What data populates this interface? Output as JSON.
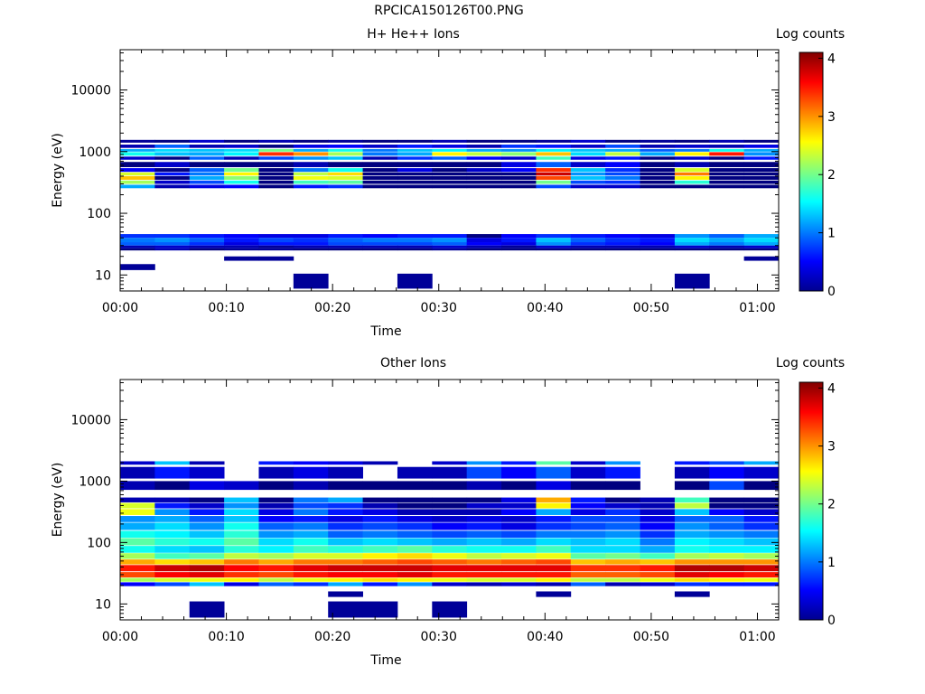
{
  "figure": {
    "title": "RPCICA150126T00.PNG"
  },
  "chart_data": [
    {
      "type": "heatmap",
      "title": "H+ He++ Ions",
      "xlabel": "Time",
      "ylabel": "Energy (eV)",
      "colorbar_label": "Log counts",
      "colorbar_ticks": [
        "0",
        "1",
        "2",
        "3",
        "4"
      ],
      "colorbar_range": [
        0,
        4.1
      ],
      "xlim_minutes": [
        0,
        62
      ],
      "x_ticks": [
        "00:00",
        "00:10",
        "00:20",
        "00:30",
        "00:40",
        "00:50",
        "01:00"
      ],
      "ylim": [
        5.5,
        45000
      ],
      "y_scale": "log",
      "y_ticks": [
        "10",
        "100",
        "1000",
        "10000"
      ],
      "time_bins": 19,
      "energy_bands": [
        {
          "e_lo": 1400,
          "e_hi": 1550,
          "values": [
            0.1,
            0.0,
            0.3,
            0.0,
            0.2,
            0.0,
            0.1,
            0.0,
            0.0,
            0.2,
            0.0,
            0.0,
            0.1,
            0.3,
            0.0,
            0.1,
            0.0,
            0.2,
            0.0
          ]
        },
        {
          "e_lo": 1150,
          "e_hi": 1300,
          "values": [
            0.2,
            0.9,
            0.2,
            0.3,
            0.0,
            0.4,
            0.5,
            0.3,
            0.6,
            0.4,
            0.2,
            0.7,
            0.6,
            0.3,
            0.8,
            0.2,
            0.3,
            0.2,
            0.4
          ]
        },
        {
          "e_lo": 1000,
          "e_hi": 1100,
          "values": [
            1.2,
            1.4,
            1.3,
            1.4,
            2.0,
            1.2,
            1.6,
            1.0,
            1.3,
            1.5,
            1.2,
            1.1,
            1.5,
            1.3,
            1.2,
            0.9,
            1.0,
            1.6,
            1.2
          ]
        },
        {
          "e_lo": 860,
          "e_hi": 980,
          "values": [
            1.6,
            1.3,
            1.2,
            1.5,
            3.4,
            3.0,
            2.2,
            1.0,
            1.2,
            2.6,
            2.3,
            2.1,
            2.8,
            1.4,
            2.3,
            1.2,
            2.6,
            3.5,
            1.1
          ]
        },
        {
          "e_lo": 740,
          "e_hi": 830,
          "values": [
            0.3,
            0.0,
            0.9,
            0.2,
            0.8,
            1.1,
            1.3,
            0.2,
            0.7,
            0.9,
            0.5,
            0.3,
            1.8,
            0.4,
            0.6,
            0.0,
            0.3,
            0.0,
            0.6
          ]
        },
        {
          "e_lo": 560,
          "e_hi": 680,
          "values": [
            0.0,
            0.3,
            0.0,
            0.0,
            0.0,
            0.2,
            0.0,
            0.0,
            0.0,
            0.0,
            0.0,
            0.4,
            0.9,
            0.3,
            0.5,
            0.0,
            0.2,
            0.0,
            0.0
          ]
        },
        {
          "e_lo": 470,
          "e_hi": 540,
          "values": [
            0.5,
            0.0,
            0.9,
            2.0,
            0.0,
            1.0,
            1.6,
            0.0,
            0.4,
            0.0,
            0.3,
            0.5,
            3.4,
            1.3,
            0.7,
            0.0,
            2.4,
            0.0,
            0.0
          ]
        },
        {
          "e_lo": 410,
          "e_hi": 460,
          "values": [
            2.4,
            0.6,
            1.0,
            2.6,
            0.0,
            2.3,
            2.7,
            0.0,
            0.0,
            0.0,
            0.0,
            0.0,
            3.8,
            1.1,
            0.8,
            0.0,
            3.1,
            0.0,
            0.0
          ]
        },
        {
          "e_lo": 350,
          "e_hi": 400,
          "values": [
            2.8,
            0.0,
            1.2,
            2.1,
            0.0,
            2.5,
            2.4,
            0.0,
            0.0,
            0.0,
            0.0,
            0.0,
            3.3,
            1.3,
            1.0,
            0.0,
            2.6,
            0.0,
            0.0
          ]
        },
        {
          "e_lo": 300,
          "e_hi": 340,
          "values": [
            2.2,
            0.3,
            0.8,
            1.6,
            0.0,
            1.8,
            1.9,
            0.0,
            0.0,
            0.0,
            0.0,
            0.0,
            2.0,
            0.8,
            0.7,
            0.0,
            1.7,
            0.0,
            0.0
          ]
        },
        {
          "e_lo": 255,
          "e_hi": 290,
          "values": [
            1.2,
            0.2,
            0.4,
            0.5,
            0.0,
            0.6,
            0.7,
            0.0,
            0.0,
            0.0,
            0.0,
            0.0,
            0.8,
            0.3,
            0.3,
            0.0,
            0.0,
            0.0,
            0.0
          ]
        },
        {
          "e_lo": 40,
          "e_hi": 46,
          "values": [
            0.7,
            0.7,
            0.6,
            0.5,
            0.4,
            0.4,
            0.6,
            0.5,
            0.6,
            0.6,
            0.0,
            0.5,
            0.7,
            0.6,
            0.5,
            0.4,
            1.1,
            0.9,
            1.2
          ]
        },
        {
          "e_lo": 34,
          "e_hi": 40,
          "values": [
            1.0,
            1.1,
            0.9,
            0.6,
            0.8,
            0.7,
            0.9,
            1.0,
            1.0,
            1.1,
            0.4,
            0.6,
            1.3,
            0.9,
            0.7,
            0.6,
            1.4,
            1.2,
            1.4
          ]
        },
        {
          "e_lo": 30,
          "e_hi": 34,
          "values": [
            0.9,
            0.9,
            0.7,
            0.4,
            0.6,
            0.6,
            0.8,
            0.8,
            0.8,
            0.9,
            0.5,
            0.4,
            1.1,
            0.7,
            0.6,
            0.5,
            1.2,
            1.0,
            1.2
          ]
        },
        {
          "e_lo": 27,
          "e_hi": 30,
          "values": [
            0.2,
            0.3,
            0.2,
            0.2,
            0.1,
            0.2,
            0.2,
            0.2,
            0.2,
            0.3,
            0.2,
            0.1,
            0.3,
            0.2,
            0.2,
            0.2,
            0.3,
            0.2,
            0.3
          ]
        },
        {
          "e_lo": 25,
          "e_hi": 27,
          "values": [
            0.0,
            0.2,
            0.0,
            0.1,
            0.1,
            0.0,
            0.0,
            0.0,
            0.0,
            0.1,
            0.0,
            0.0,
            0.0,
            0.0,
            0.0,
            0.0,
            0.0,
            0.0,
            0.0
          ]
        },
        {
          "e_lo": 17,
          "e_hi": 20,
          "values": [
            null,
            null,
            null,
            0.1,
            0.1,
            null,
            null,
            null,
            null,
            null,
            null,
            null,
            null,
            null,
            null,
            null,
            null,
            null,
            0.1
          ]
        },
        {
          "e_lo": 12,
          "e_hi": 15,
          "values": [
            0.1,
            null,
            null,
            null,
            null,
            null,
            null,
            null,
            null,
            null,
            null,
            null,
            null,
            null,
            null,
            null,
            null,
            null,
            null
          ]
        },
        {
          "e_lo": 6,
          "e_hi": 10.5,
          "values": [
            null,
            null,
            null,
            null,
            null,
            0.1,
            null,
            null,
            0.1,
            null,
            null,
            null,
            null,
            null,
            null,
            null,
            0.1,
            null,
            null
          ]
        }
      ]
    },
    {
      "type": "heatmap",
      "title": "Other Ions",
      "xlabel": "Time",
      "ylabel": "Energy (eV)",
      "colorbar_label": "Log counts",
      "colorbar_ticks": [
        "0",
        "1",
        "2",
        "3",
        "4"
      ],
      "colorbar_range": [
        0,
        4.1
      ],
      "xlim_minutes": [
        0,
        62
      ],
      "x_ticks": [
        "00:00",
        "00:10",
        "00:20",
        "00:30",
        "00:40",
        "00:50",
        "01:00"
      ],
      "ylim": [
        5.5,
        45000
      ],
      "y_scale": "log",
      "y_ticks": [
        "10",
        "100",
        "1000",
        "10000"
      ],
      "time_bins": 19,
      "energy_bands": [
        {
          "e_lo": 1850,
          "e_hi": 2100,
          "values": [
            0.3,
            1.3,
            0.2,
            null,
            0.6,
            0.5,
            0.4,
            0.2,
            null,
            0.3,
            1.1,
            0.6,
            1.9,
            0.3,
            1.1,
            null,
            0.6,
            0.8,
            1.2
          ]
        },
        {
          "e_lo": 1100,
          "e_hi": 1700,
          "values": [
            0.2,
            0.6,
            0.3,
            null,
            0.2,
            0.4,
            0.2,
            null,
            0.2,
            0.2,
            0.8,
            0.5,
            0.9,
            0.3,
            0.6,
            null,
            0.2,
            0.5,
            0.3
          ]
        },
        {
          "e_lo": 720,
          "e_hi": 1000,
          "values": [
            0.2,
            0.0,
            0.4,
            0.3,
            0.0,
            0.2,
            0.0,
            0.0,
            0.0,
            0.0,
            0.2,
            0.0,
            0.4,
            0.0,
            0.0,
            null,
            0.0,
            0.8,
            0.0
          ]
        },
        {
          "e_lo": 450,
          "e_hi": 540,
          "values": [
            0.2,
            0.2,
            0.0,
            1.3,
            0.0,
            1.0,
            1.2,
            0.0,
            0.0,
            0.0,
            0.0,
            0.4,
            2.9,
            0.6,
            0.0,
            0.2,
            1.8,
            0.0,
            0.0
          ]
        },
        {
          "e_lo": 360,
          "e_hi": 440,
          "values": [
            2.4,
            0.6,
            0.3,
            1.1,
            0.2,
            0.8,
            0.7,
            0.2,
            0.0,
            0.0,
            0.3,
            0.3,
            2.6,
            0.5,
            0.3,
            0.2,
            2.3,
            0.0,
            0.0
          ]
        },
        {
          "e_lo": 280,
          "e_hi": 350,
          "values": [
            2.5,
            1.1,
            0.6,
            1.4,
            0.4,
            1.0,
            0.6,
            0.4,
            0.2,
            0.2,
            0.2,
            0.5,
            1.2,
            0.4,
            0.7,
            0.3,
            1.3,
            0.5,
            0.3
          ]
        },
        {
          "e_lo": 215,
          "e_hi": 270,
          "values": [
            1.1,
            1.2,
            0.9,
            1.3,
            0.5,
            0.6,
            0.4,
            0.6,
            0.4,
            0.3,
            0.4,
            0.3,
            0.6,
            0.8,
            0.8,
            0.4,
            0.9,
            0.9,
            0.6
          ]
        },
        {
          "e_lo": 160,
          "e_hi": 210,
          "values": [
            1.2,
            1.4,
            1.1,
            1.6,
            0.9,
            1.0,
            0.7,
            0.8,
            0.7,
            0.5,
            0.6,
            0.4,
            0.7,
            0.8,
            0.9,
            0.5,
            1.1,
            0.9,
            0.7
          ]
        },
        {
          "e_lo": 120,
          "e_hi": 155,
          "values": [
            1.6,
            1.5,
            1.3,
            1.7,
            1.1,
            1.2,
            0.9,
            1.0,
            0.9,
            0.8,
            0.9,
            0.8,
            1.0,
            1.0,
            1.1,
            0.7,
            1.2,
            1.1,
            1.0
          ]
        },
        {
          "e_lo": 90,
          "e_hi": 118,
          "values": [
            1.9,
            1.7,
            1.6,
            1.9,
            1.4,
            1.6,
            1.3,
            1.4,
            1.3,
            1.2,
            1.3,
            1.2,
            1.4,
            1.3,
            1.4,
            1.0,
            1.5,
            1.4,
            1.3
          ]
        },
        {
          "e_lo": 68,
          "e_hi": 88,
          "values": [
            1.6,
            1.4,
            1.3,
            1.7,
            1.5,
            1.8,
            1.7,
            1.8,
            1.9,
            1.7,
            1.6,
            1.6,
            1.8,
            1.4,
            1.4,
            1.2,
            1.6,
            1.5,
            1.5
          ]
        },
        {
          "e_lo": 54,
          "e_hi": 67,
          "values": [
            2.2,
            1.8,
            1.9,
            2.3,
            2.2,
            2.4,
            2.4,
            2.6,
            2.7,
            2.5,
            2.3,
            2.4,
            2.5,
            1.9,
            2.0,
            1.8,
            2.2,
            2.3,
            2.2
          ]
        },
        {
          "e_lo": 44,
          "e_hi": 53,
          "values": [
            2.9,
            2.7,
            2.8,
            3.1,
            2.9,
            3.1,
            3.1,
            3.2,
            3.3,
            3.2,
            3.1,
            3.2,
            3.3,
            2.8,
            2.9,
            2.8,
            3.0,
            3.0,
            3.0
          ]
        },
        {
          "e_lo": 34,
          "e_hi": 43,
          "values": [
            3.5,
            3.8,
            3.9,
            3.6,
            3.5,
            3.7,
            3.8,
            3.8,
            3.8,
            3.7,
            3.7,
            3.7,
            3.7,
            3.4,
            3.4,
            3.5,
            3.9,
            3.9,
            3.8
          ]
        },
        {
          "e_lo": 27,
          "e_hi": 33,
          "values": [
            3.3,
            3.6,
            3.7,
            3.4,
            3.3,
            3.5,
            3.6,
            3.6,
            3.7,
            3.5,
            3.5,
            3.5,
            3.5,
            3.2,
            3.2,
            3.3,
            3.7,
            3.6,
            3.5
          ]
        },
        {
          "e_lo": 23,
          "e_hi": 26.5,
          "values": [
            2.2,
            2.4,
            2.5,
            2.6,
            2.3,
            2.5,
            2.6,
            2.7,
            2.6,
            2.5,
            2.4,
            2.4,
            2.6,
            2.3,
            2.3,
            2.5,
            2.7,
            2.6,
            2.5
          ]
        },
        {
          "e_lo": 19.5,
          "e_hi": 22.5,
          "values": [
            0.5,
            0.8,
            1.3,
            0.4,
            0.9,
            0.7,
            1.2,
            0.6,
            1.1,
            0.3,
            0.2,
            0.3,
            0.2,
            0.9,
            0.2,
            0.3,
            0.7,
            0.6,
            0.6
          ]
        },
        {
          "e_lo": 13,
          "e_hi": 16,
          "values": [
            null,
            null,
            null,
            null,
            null,
            null,
            0.1,
            null,
            null,
            null,
            null,
            null,
            0.1,
            null,
            null,
            null,
            0.1,
            null,
            null
          ]
        },
        {
          "e_lo": 6,
          "e_hi": 11,
          "values": [
            null,
            null,
            0.1,
            null,
            null,
            null,
            0.1,
            0.1,
            null,
            0.1,
            null,
            null,
            null,
            null,
            null,
            null,
            null,
            null,
            null
          ]
        }
      ]
    }
  ]
}
